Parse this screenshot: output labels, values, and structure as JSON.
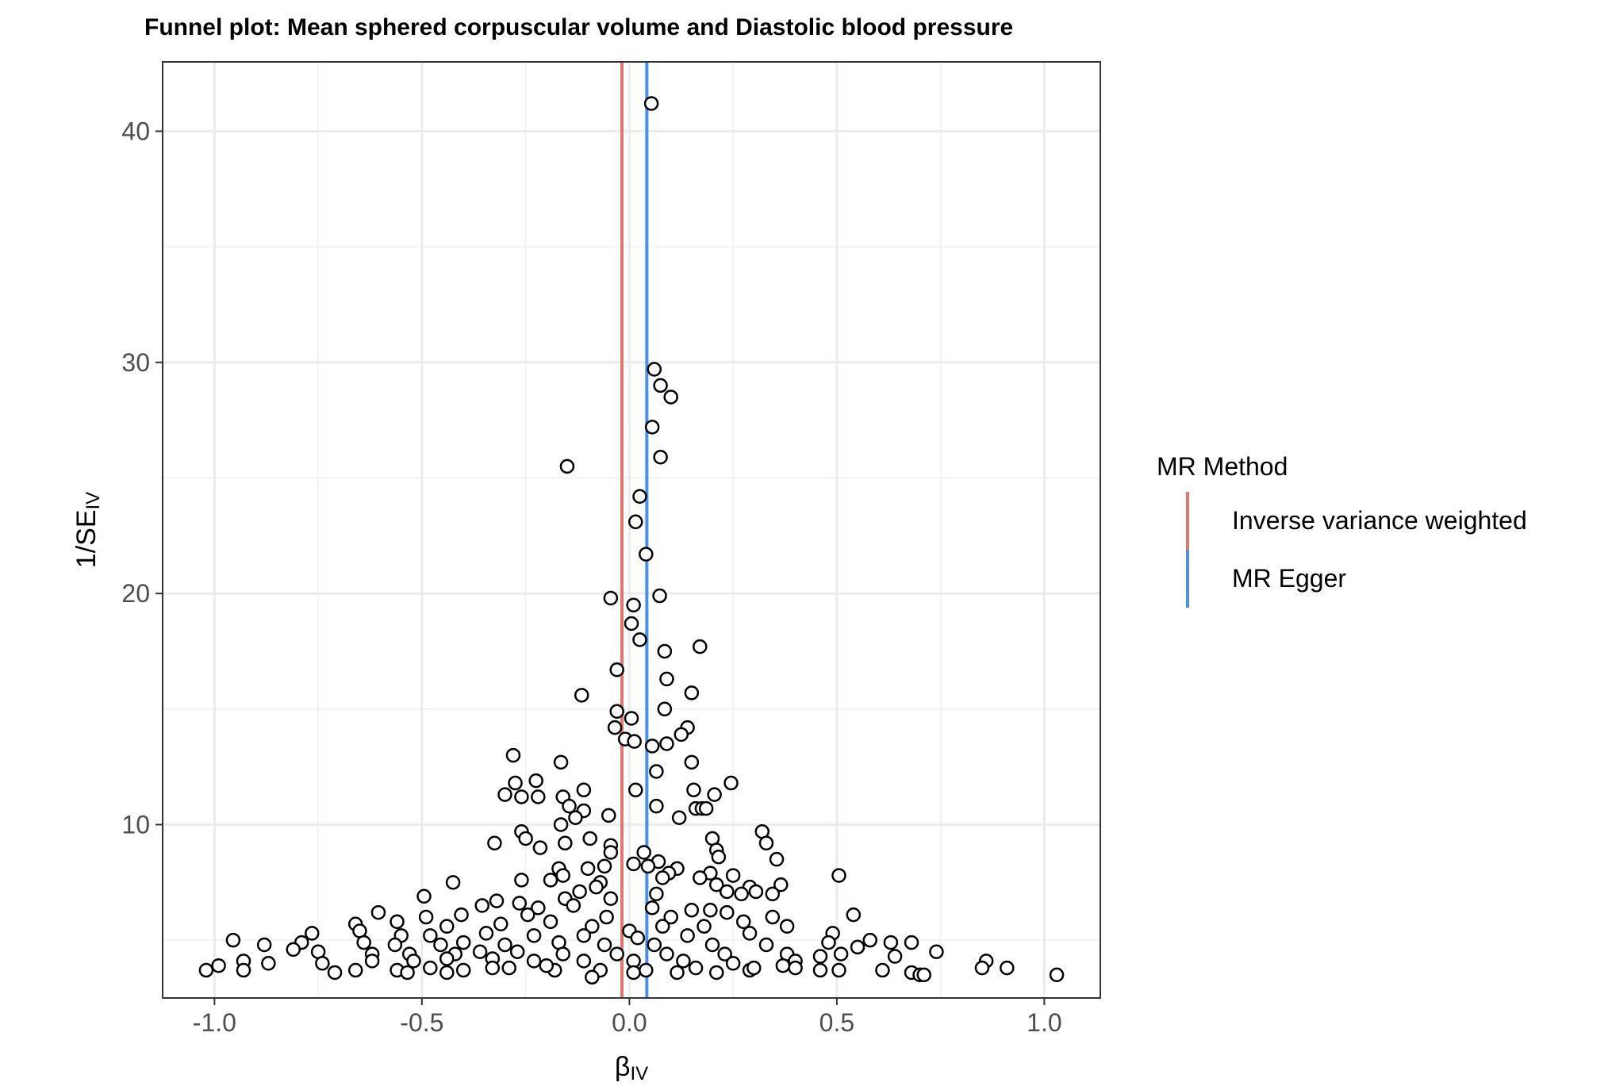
{
  "chart_data": {
    "type": "scatter",
    "title": "Funnel plot: Mean sphered corpuscular volume and Diastolic blood pressure",
    "xlabel": "β",
    "xlabel_sub": "IV",
    "ylabel": "1/SE",
    "ylabel_sub": "IV",
    "xlim": [
      -1.125,
      1.135
    ],
    "ylim": [
      2.5,
      43
    ],
    "x_ticks": [
      -1.0,
      -0.5,
      0.0,
      0.5,
      1.0
    ],
    "x_tick_labels": [
      "-1.0",
      "-0.5",
      "0.0",
      "0.5",
      "1.0"
    ],
    "y_ticks": [
      10,
      20,
      30,
      40
    ],
    "y_tick_labels": [
      "10",
      "20",
      "30",
      "40"
    ],
    "grid": true,
    "legend": {
      "title": "MR Method",
      "placement": "right",
      "entries": [
        {
          "label": "Inverse variance weighted",
          "color": "#E0766E",
          "x": -0.018
        },
        {
          "label": "MR Egger",
          "color": "#4A8FEA",
          "x": 0.042
        }
      ]
    },
    "points": [
      [
        0.053,
        41.2
      ],
      [
        0.06,
        29.7
      ],
      [
        0.075,
        29.0
      ],
      [
        0.1,
        28.5
      ],
      [
        0.055,
        27.2
      ],
      [
        0.075,
        25.9
      ],
      [
        -0.15,
        25.5
      ],
      [
        0.025,
        24.2
      ],
      [
        0.015,
        23.1
      ],
      [
        0.04,
        21.7
      ],
      [
        -0.045,
        19.8
      ],
      [
        0.073,
        19.9
      ],
      [
        0.01,
        19.5
      ],
      [
        0.005,
        18.7
      ],
      [
        0.025,
        18.0
      ],
      [
        0.085,
        17.5
      ],
      [
        0.17,
        17.7
      ],
      [
        -0.03,
        16.7
      ],
      [
        0.09,
        16.3
      ],
      [
        -0.115,
        15.6
      ],
      [
        0.15,
        15.7
      ],
      [
        -0.03,
        14.9
      ],
      [
        0.085,
        15.0
      ],
      [
        0.005,
        14.6
      ],
      [
        -0.035,
        14.2
      ],
      [
        0.14,
        14.2
      ],
      [
        -0.01,
        13.7
      ],
      [
        0.012,
        13.6
      ],
      [
        0.125,
        13.9
      ],
      [
        0.055,
        13.4
      ],
      [
        0.09,
        13.5
      ],
      [
        -0.28,
        13.0
      ],
      [
        0.15,
        12.7
      ],
      [
        -0.165,
        12.7
      ],
      [
        0.065,
        12.3
      ],
      [
        -0.275,
        11.8
      ],
      [
        -0.225,
        11.9
      ],
      [
        0.245,
        11.8
      ],
      [
        -0.3,
        11.3
      ],
      [
        -0.26,
        11.2
      ],
      [
        -0.22,
        11.2
      ],
      [
        -0.16,
        11.2
      ],
      [
        -0.11,
        11.5
      ],
      [
        0.015,
        11.5
      ],
      [
        0.155,
        11.5
      ],
      [
        0.205,
        11.3
      ],
      [
        -0.145,
        10.8
      ],
      [
        0.065,
        10.8
      ],
      [
        0.16,
        10.7
      ],
      [
        0.175,
        10.7
      ],
      [
        -0.11,
        10.6
      ],
      [
        0.185,
        10.7
      ],
      [
        -0.13,
        10.3
      ],
      [
        -0.05,
        10.4
      ],
      [
        0.12,
        10.3
      ],
      [
        -0.165,
        10.0
      ],
      [
        -0.26,
        9.7
      ],
      [
        0.32,
        9.7
      ],
      [
        -0.25,
        9.4
      ],
      [
        -0.095,
        9.4
      ],
      [
        -0.325,
        9.2
      ],
      [
        -0.215,
        9.0
      ],
      [
        0.2,
        9.4
      ],
      [
        0.33,
        9.2
      ],
      [
        -0.045,
        9.1
      ],
      [
        -0.045,
        8.8
      ],
      [
        0.035,
        8.8
      ],
      [
        0.21,
        8.9
      ],
      [
        -0.155,
        9.2
      ],
      [
        0.355,
        8.5
      ],
      [
        0.215,
        8.6
      ],
      [
        0.07,
        8.4
      ],
      [
        0.045,
        8.2
      ],
      [
        -0.17,
        8.1
      ],
      [
        0.115,
        8.1
      ],
      [
        0.01,
        8.3
      ],
      [
        -0.06,
        8.2
      ],
      [
        -0.1,
        8.1
      ],
      [
        0.195,
        7.9
      ],
      [
        0.25,
        7.8
      ],
      [
        0.505,
        7.8
      ],
      [
        -0.26,
        7.6
      ],
      [
        -0.19,
        7.6
      ],
      [
        -0.16,
        7.8
      ],
      [
        0.095,
        7.9
      ],
      [
        -0.425,
        7.5
      ],
      [
        -0.07,
        7.5
      ],
      [
        0.08,
        7.7
      ],
      [
        0.17,
        7.7
      ],
      [
        -0.12,
        7.1
      ],
      [
        -0.08,
        7.3
      ],
      [
        0.21,
        7.4
      ],
      [
        0.29,
        7.3
      ],
      [
        0.365,
        7.4
      ],
      [
        0.305,
        7.1
      ],
      [
        0.27,
        7.0
      ],
      [
        0.345,
        7.0
      ],
      [
        -0.495,
        6.9
      ],
      [
        -0.32,
        6.7
      ],
      [
        -0.265,
        6.6
      ],
      [
        -0.155,
        6.8
      ],
      [
        -0.045,
        6.8
      ],
      [
        0.065,
        7.0
      ],
      [
        0.235,
        7.1
      ],
      [
        -0.355,
        6.5
      ],
      [
        -0.22,
        6.4
      ],
      [
        -0.135,
        6.5
      ],
      [
        0.055,
        6.4
      ],
      [
        0.15,
        6.3
      ],
      [
        0.195,
        6.3
      ],
      [
        -0.405,
        6.1
      ],
      [
        -0.245,
        6.1
      ],
      [
        -0.055,
        6.0
      ],
      [
        0.1,
        6.0
      ],
      [
        0.235,
        6.2
      ],
      [
        0.345,
        6.0
      ],
      [
        0.54,
        6.1
      ],
      [
        -0.605,
        6.2
      ],
      [
        -0.49,
        6.0
      ],
      [
        -0.66,
        5.7
      ],
      [
        -0.56,
        5.8
      ],
      [
        -0.44,
        5.6
      ],
      [
        -0.31,
        5.7
      ],
      [
        -0.19,
        5.8
      ],
      [
        -0.09,
        5.6
      ],
      [
        0.0,
        5.4
      ],
      [
        0.08,
        5.6
      ],
      [
        0.18,
        5.6
      ],
      [
        0.275,
        5.8
      ],
      [
        0.38,
        5.6
      ],
      [
        -0.765,
        5.3
      ],
      [
        -0.65,
        5.4
      ],
      [
        -0.55,
        5.2
      ],
      [
        -0.48,
        5.2
      ],
      [
        -0.345,
        5.3
      ],
      [
        -0.23,
        5.2
      ],
      [
        -0.11,
        5.2
      ],
      [
        0.02,
        5.1
      ],
      [
        0.14,
        5.2
      ],
      [
        0.29,
        5.3
      ],
      [
        0.49,
        5.3
      ],
      [
        -0.955,
        5.0
      ],
      [
        -0.88,
        4.8
      ],
      [
        -0.79,
        4.9
      ],
      [
        -0.64,
        4.9
      ],
      [
        -0.565,
        4.8
      ],
      [
        -0.455,
        4.8
      ],
      [
        -0.4,
        4.9
      ],
      [
        -0.3,
        4.8
      ],
      [
        -0.17,
        4.9
      ],
      [
        -0.06,
        4.8
      ],
      [
        0.06,
        4.8
      ],
      [
        0.2,
        4.8
      ],
      [
        0.33,
        4.8
      ],
      [
        0.48,
        4.9
      ],
      [
        0.58,
        5.0
      ],
      [
        0.63,
        4.9
      ],
      [
        0.68,
        4.9
      ],
      [
        -0.93,
        4.1
      ],
      [
        -0.81,
        4.6
      ],
      [
        -0.75,
        4.5
      ],
      [
        -0.62,
        4.4
      ],
      [
        -0.53,
        4.4
      ],
      [
        -0.42,
        4.4
      ],
      [
        -0.36,
        4.5
      ],
      [
        -0.27,
        4.5
      ],
      [
        -0.16,
        4.4
      ],
      [
        -0.03,
        4.4
      ],
      [
        0.09,
        4.4
      ],
      [
        0.23,
        4.4
      ],
      [
        0.38,
        4.4
      ],
      [
        0.46,
        4.3
      ],
      [
        0.55,
        4.7
      ],
      [
        0.74,
        4.5
      ],
      [
        -0.99,
        3.9
      ],
      [
        -0.87,
        4.0
      ],
      [
        -0.74,
        4.0
      ],
      [
        -0.62,
        4.1
      ],
      [
        -0.52,
        4.1
      ],
      [
        -0.44,
        4.2
      ],
      [
        -0.33,
        4.2
      ],
      [
        -0.23,
        4.1
      ],
      [
        -0.11,
        4.1
      ],
      [
        0.01,
        4.1
      ],
      [
        0.13,
        4.1
      ],
      [
        0.25,
        4.0
      ],
      [
        0.4,
        4.1
      ],
      [
        0.51,
        4.4
      ],
      [
        0.64,
        4.3
      ],
      [
        0.86,
        4.1
      ],
      [
        -1.02,
        3.7
      ],
      [
        -0.93,
        3.7
      ],
      [
        -0.71,
        3.6
      ],
      [
        -0.66,
        3.7
      ],
      [
        -0.56,
        3.7
      ],
      [
        -0.48,
        3.8
      ],
      [
        -0.4,
        3.7
      ],
      [
        -0.29,
        3.8
      ],
      [
        -0.18,
        3.7
      ],
      [
        -0.07,
        3.7
      ],
      [
        0.04,
        3.7
      ],
      [
        0.16,
        3.8
      ],
      [
        0.29,
        3.7
      ],
      [
        0.4,
        3.8
      ],
      [
        0.46,
        3.7
      ],
      [
        0.505,
        3.7
      ],
      [
        0.61,
        3.7
      ],
      [
        0.68,
        3.6
      ],
      [
        0.7,
        3.5
      ],
      [
        0.71,
        3.5
      ],
      [
        0.85,
        3.8
      ],
      [
        0.91,
        3.8
      ],
      [
        1.03,
        3.5
      ],
      [
        -0.535,
        3.6
      ],
      [
        -0.44,
        3.6
      ],
      [
        -0.33,
        3.8
      ],
      [
        -0.2,
        3.9
      ],
      [
        -0.09,
        3.4
      ],
      [
        0.01,
        3.6
      ],
      [
        0.115,
        3.6
      ],
      [
        0.21,
        3.6
      ],
      [
        0.3,
        3.8
      ],
      [
        0.37,
        3.9
      ]
    ]
  }
}
